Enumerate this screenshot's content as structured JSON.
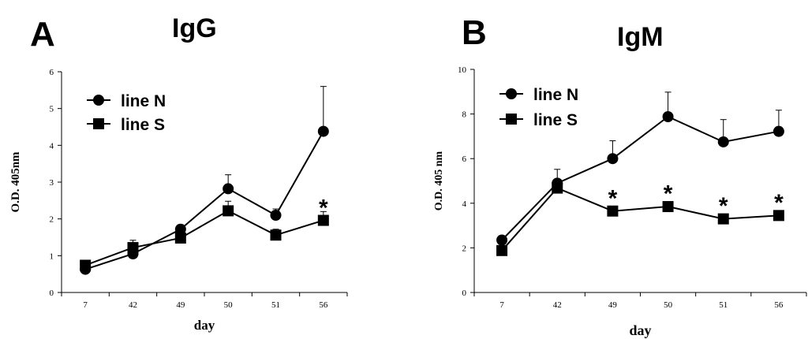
{
  "chart_data": [
    {
      "type": "line",
      "panel_label": "A",
      "title": "IgG",
      "xlabel": "day",
      "ylabel": "O.D. 405nm",
      "categories": [
        "7",
        "42",
        "49",
        "50",
        "51",
        "56"
      ],
      "ylim": [
        0,
        6
      ],
      "yticks": [
        0,
        1,
        2,
        3,
        4,
        5,
        6
      ],
      "grid": false,
      "legend": "top-left",
      "series": [
        {
          "name": "line N",
          "marker": "circle",
          "values": [
            0.63,
            1.05,
            1.72,
            2.82,
            2.1,
            4.38
          ],
          "errors": [
            0.07,
            0.1,
            0.12,
            0.38,
            0.17,
            1.22
          ]
        },
        {
          "name": "line S",
          "marker": "square",
          "values": [
            0.74,
            1.22,
            1.48,
            2.22,
            1.56,
            1.96
          ],
          "errors": [
            0.08,
            0.2,
            0.15,
            0.26,
            0.16,
            0.24
          ]
        }
      ],
      "annotations": [
        {
          "text": "*",
          "category": "56",
          "y": 2.35
        }
      ]
    },
    {
      "type": "line",
      "panel_label": "B",
      "title": "IgM",
      "xlabel": "day",
      "ylabel": "O.D. 405 nm",
      "categories": [
        "7",
        "42",
        "49",
        "50",
        "51",
        "56"
      ],
      "ylim": [
        0,
        10
      ],
      "yticks": [
        0,
        2,
        4,
        6,
        8,
        10
      ],
      "grid": false,
      "legend": "top-left",
      "series": [
        {
          "name": "line N",
          "marker": "circle",
          "values": [
            2.35,
            4.9,
            6.0,
            7.88,
            6.75,
            7.22
          ],
          "errors": [
            0.15,
            0.62,
            0.8,
            1.1,
            1.0,
            0.95
          ]
        },
        {
          "name": "line S",
          "marker": "square",
          "values": [
            1.88,
            4.68,
            3.65,
            3.85,
            3.3,
            3.45
          ],
          "errors": [
            0.12,
            0.2,
            0.2,
            0.22,
            0.2,
            0.22
          ]
        }
      ],
      "annotations": [
        {
          "text": "*",
          "category": "49",
          "y": 4.3
        },
        {
          "text": "*",
          "category": "50",
          "y": 4.5
        },
        {
          "text": "*",
          "category": "51",
          "y": 3.95
        },
        {
          "text": "*",
          "category": "56",
          "y": 4.1
        }
      ]
    }
  ]
}
